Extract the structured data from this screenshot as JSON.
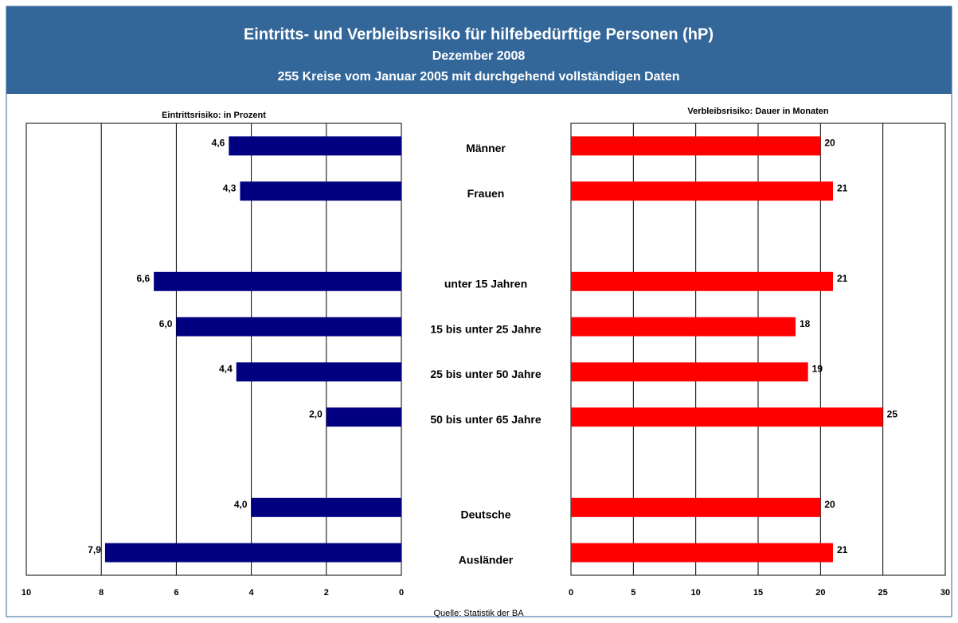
{
  "header": {
    "title": "Eintritts- und Verbleibsrisiko für hilfebedürftige Personen (hP)",
    "subtitle": "Dezember 2008",
    "note": "255 Kreise vom Januar 2005 mit durchgehend vollständigen Daten"
  },
  "source": "Quelle: Statistik der BA",
  "chart_data": [
    {
      "type": "bar",
      "orientation": "horizontal",
      "title": "Eintrittsrisiko:  in Prozent",
      "categories": [
        "Männer",
        "Frauen",
        null,
        "unter 15 Jahren",
        "15 bis unter 25 Jahre",
        "25 bis unter 50 Jahre",
        "50 bis unter 65 Jahre",
        null,
        "Deutsche",
        "Ausländer"
      ],
      "values": [
        4.6,
        4.3,
        null,
        6.6,
        6.0,
        4.4,
        2.0,
        null,
        4.0,
        7.9
      ],
      "value_labels": [
        "4,6",
        "4,3",
        null,
        "6,6",
        "6,0",
        "4,4",
        "2,0",
        null,
        "4,0",
        "7,9"
      ],
      "color": "#000080",
      "xlim": [
        10,
        0
      ],
      "xticks": [
        10,
        8,
        6,
        4,
        2,
        0
      ],
      "grid": true
    },
    {
      "type": "bar",
      "orientation": "horizontal",
      "title": "Verbleibsrisiko: Dauer in Monaten",
      "values": [
        20,
        21,
        null,
        21,
        18,
        19,
        25,
        null,
        20,
        21
      ],
      "color": "#ff0000",
      "xlim": [
        0,
        30
      ],
      "xticks": [
        0,
        5,
        10,
        15,
        20,
        25,
        30
      ],
      "grid": true
    }
  ]
}
